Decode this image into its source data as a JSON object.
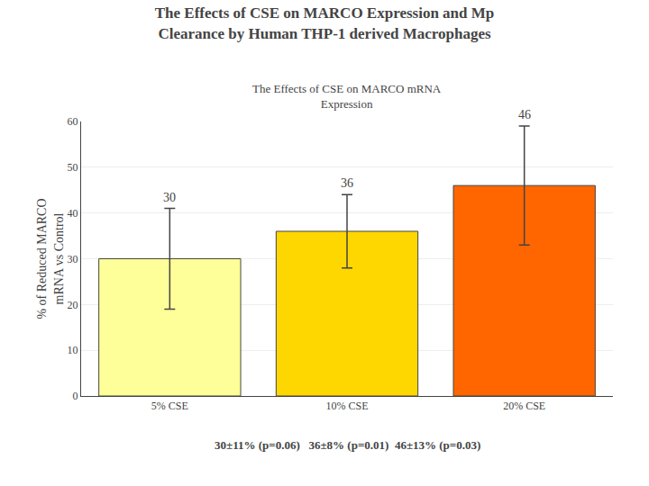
{
  "chart_data": {
    "type": "bar",
    "title": "The Effects of CSE on MARCO Expression and Mp\nClearance by Human THP-1 derived Macrophages",
    "subtitle": "The Effects of CSE on MARCO mRNA\nExpression",
    "categories": [
      "5% CSE",
      "10% CSE",
      "20% CSE"
    ],
    "values": [
      30,
      36,
      46
    ],
    "errors": [
      11,
      8,
      13
    ],
    "colors": [
      "#FFFF99",
      "#FFD700",
      "#FF6600"
    ],
    "ylabel": "% of Reduced MARCO\nmRNA vs Control",
    "ylim": [
      0,
      60
    ],
    "yticks": [
      0,
      10,
      20,
      30,
      40,
      50,
      60
    ],
    "grid": true,
    "data_labels": true,
    "annotations": [
      "30±11% (p=0.06)   36±8% (p=0.01)  46±13% (p=0.03)"
    ]
  }
}
